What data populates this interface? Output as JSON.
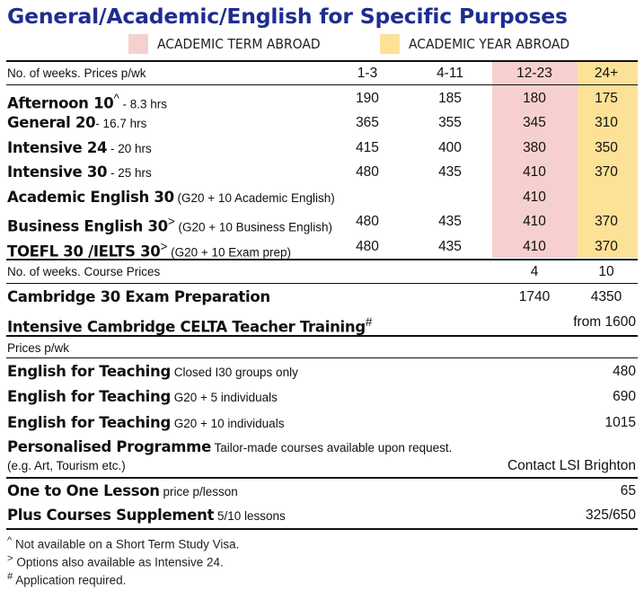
{
  "title": "General/Academic/English for Specific Purposes",
  "legend": {
    "term": {
      "label": "ACADEMIC TERM ABROAD",
      "color": "#f6d0cf"
    },
    "year": {
      "label": "ACADEMIC YEAR ABROAD",
      "color": "#fde196"
    }
  },
  "weekly": {
    "header": {
      "label": "No. of weeks. Prices p/wk",
      "cols": [
        "1-3",
        "4-11",
        "12-23",
        "24+"
      ]
    },
    "rows": [
      {
        "name": "Afternoon 10",
        "sup": "^",
        "detail": " - 8.3 hrs",
        "vals": [
          "190",
          "185",
          "180",
          "175"
        ]
      },
      {
        "name": "General 20",
        "sup": "",
        "detail": "- 16.7 hrs",
        "vals": [
          "365",
          "355",
          "345",
          "310"
        ]
      },
      {
        "name": "Intensive 24",
        "sup": "",
        "detail": " - 20 hrs",
        "vals": [
          "415",
          "400",
          "380",
          "350"
        ]
      },
      {
        "name": "Intensive 30",
        "sup": "",
        "detail": " - 25 hrs",
        "vals": [
          "480",
          "435",
          "410",
          "370"
        ]
      },
      {
        "name": "Academic English 30",
        "sup": "",
        "detail": " (G20 + 10 Academic English)",
        "vals": [
          "",
          "",
          "410",
          ""
        ]
      },
      {
        "name": "Business English 30",
        "sup": ">",
        "detail": " (G20 + 10 Business English)",
        "vals": [
          "480",
          "435",
          "410",
          "370"
        ]
      },
      {
        "name": "TOEFL 30 /IELTS 30",
        "sup": ">",
        "detail": " (G20 + 10 Exam prep)",
        "vals": [
          "480",
          "435",
          "410",
          "370"
        ]
      }
    ]
  },
  "course": {
    "header": {
      "label": "No. of weeks. Course Prices",
      "cols": [
        "4",
        "10"
      ]
    },
    "cambridge": {
      "name": "Cambridge 30 Exam Preparation",
      "vals": [
        "1740",
        "4350"
      ]
    },
    "celta": {
      "name": "Intensive Cambridge CELTA Teacher Training",
      "sup": "#",
      "value": "from 1600"
    }
  },
  "teaching": {
    "header": "Prices p/wk",
    "rows": [
      {
        "name": "English for Teaching",
        "detail": " Closed I30 groups only",
        "value": "480"
      },
      {
        "name": "English for Teaching",
        "detail": " G20 + 5 individuals",
        "value": "690"
      },
      {
        "name": "English for Teaching",
        "detail": " G20 + 10 individuals",
        "value": "1015"
      }
    ],
    "personalised": {
      "name": "Personalised Programme",
      "detail": " Tailor-made courses available upon request.",
      "detail2": "(e.g. Art, Tourism etc.)",
      "value": "Contact LSI Brighton"
    }
  },
  "extras": [
    {
      "name": "One to One Lesson",
      "detail": " price p/lesson",
      "value": "65"
    },
    {
      "name": "Plus Courses Supplement",
      "detail": " 5/10 lessons",
      "value": "325/650"
    }
  ],
  "footnotes": [
    {
      "mark": "^",
      "text": " Not available on a Short Term Study Visa."
    },
    {
      "mark": ">",
      "text": " Options also available as Intensive 24."
    },
    {
      "mark": "#",
      "text": " Application required."
    }
  ]
}
